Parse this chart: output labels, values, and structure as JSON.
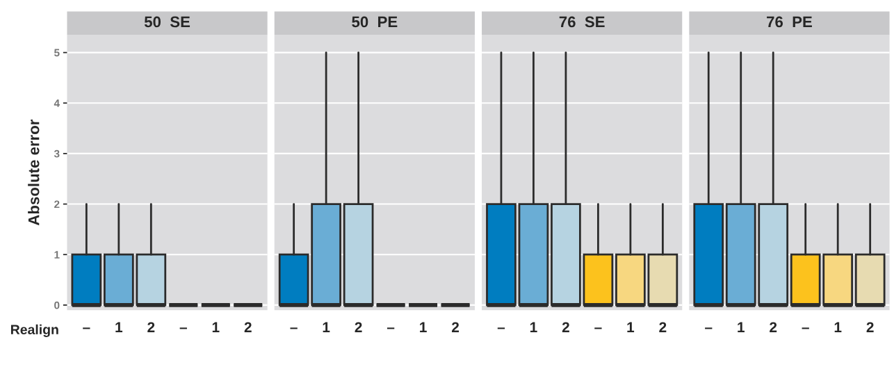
{
  "chart_data": [
    {
      "type": "box",
      "title": "50  SE",
      "ylabel": "Absolute error",
      "xlabel": "Realign",
      "categories": [
        "–",
        "1",
        "2",
        "–",
        "1",
        "2"
      ],
      "colors": [
        "#007dc0",
        "#6aadd5",
        "#b6d3e1",
        "#2b2b2b",
        "#2b2b2b",
        "#2b2b2b"
      ],
      "boxes": [
        {
          "low": 0,
          "q1": 0,
          "median": 0,
          "q3": 1,
          "high": 2
        },
        {
          "low": 0,
          "q1": 0,
          "median": 0,
          "q3": 1,
          "high": 2
        },
        {
          "low": 0,
          "q1": 0,
          "median": 0,
          "q3": 1,
          "high": 2
        },
        {
          "low": 0,
          "q1": 0,
          "median": 0,
          "q3": 0,
          "high": 0
        },
        {
          "low": 0,
          "q1": 0,
          "median": 0,
          "q3": 0,
          "high": 0
        },
        {
          "low": 0,
          "q1": 0,
          "median": 0,
          "q3": 0,
          "high": 0
        }
      ],
      "ylim": [
        -0.1,
        5.35
      ],
      "yticks": [
        0,
        1,
        2,
        3,
        4,
        5
      ],
      "grid": "y",
      "legend": false
    },
    {
      "type": "box",
      "title": "50  PE",
      "categories": [
        "–",
        "1",
        "2",
        "–",
        "1",
        "2"
      ],
      "colors": [
        "#007dc0",
        "#6aadd5",
        "#b6d3e1",
        "#2b2b2b",
        "#2b2b2b",
        "#2b2b2b"
      ],
      "boxes": [
        {
          "low": 0,
          "q1": 0,
          "median": 0,
          "q3": 1,
          "high": 2
        },
        {
          "low": 0,
          "q1": 0,
          "median": 0,
          "q3": 2,
          "high": 5
        },
        {
          "low": 0,
          "q1": 0,
          "median": 0,
          "q3": 2,
          "high": 5
        },
        {
          "low": 0,
          "q1": 0,
          "median": 0,
          "q3": 0,
          "high": 0
        },
        {
          "low": 0,
          "q1": 0,
          "median": 0,
          "q3": 0,
          "high": 0
        },
        {
          "low": 0,
          "q1": 0,
          "median": 0,
          "q3": 0,
          "high": 0
        }
      ],
      "ylim": [
        -0.1,
        5.35
      ],
      "tick_labels": "x",
      "grid": "y",
      "legend": false
    },
    {
      "type": "box",
      "title": "76  SE",
      "categories": [
        "–",
        "1",
        "2",
        "–",
        "1",
        "2"
      ],
      "colors": [
        "#007dc0",
        "#6aadd5",
        "#b6d3e1",
        "#fcc21d",
        "#f7d780",
        "#e7dbb1"
      ],
      "boxes": [
        {
          "low": 0,
          "q1": 0,
          "median": 0,
          "q3": 2,
          "high": 5
        },
        {
          "low": 0,
          "q1": 0,
          "median": 0,
          "q3": 2,
          "high": 5
        },
        {
          "low": 0,
          "q1": 0,
          "median": 0,
          "q3": 2,
          "high": 5
        },
        {
          "low": 0,
          "q1": 0,
          "median": 0,
          "q3": 1,
          "high": 2
        },
        {
          "low": 0,
          "q1": 0,
          "median": 0,
          "q3": 1,
          "high": 2
        },
        {
          "low": 0,
          "q1": 0,
          "median": 0,
          "q3": 1,
          "high": 2
        }
      ],
      "ylim": [
        -0.1,
        5.35
      ],
      "tick_labels": "x",
      "grid": "y",
      "legend": false
    },
    {
      "type": "box",
      "title": "76  PE",
      "categories": [
        "–",
        "1",
        "2",
        "–",
        "1",
        "2"
      ],
      "colors": [
        "#007dc0",
        "#6aadd5",
        "#b6d3e1",
        "#fcc21d",
        "#f7d780",
        "#e7dbb1"
      ],
      "boxes": [
        {
          "low": 0,
          "q1": 0,
          "median": 0,
          "q3": 2,
          "high": 5
        },
        {
          "low": 0,
          "q1": 0,
          "median": 0,
          "q3": 2,
          "high": 5
        },
        {
          "low": 0,
          "q1": 0,
          "median": 0,
          "q3": 2,
          "high": 5
        },
        {
          "low": 0,
          "q1": 0,
          "median": 0,
          "q3": 1,
          "high": 2
        },
        {
          "low": 0,
          "q1": 0,
          "median": 0,
          "q3": 1,
          "high": 2
        },
        {
          "low": 0,
          "q1": 0,
          "median": 0,
          "q3": 1,
          "high": 2
        }
      ],
      "ylim": [
        -0.1,
        5.35
      ],
      "tick_labels": "x",
      "grid": "y",
      "legend": false
    }
  ]
}
